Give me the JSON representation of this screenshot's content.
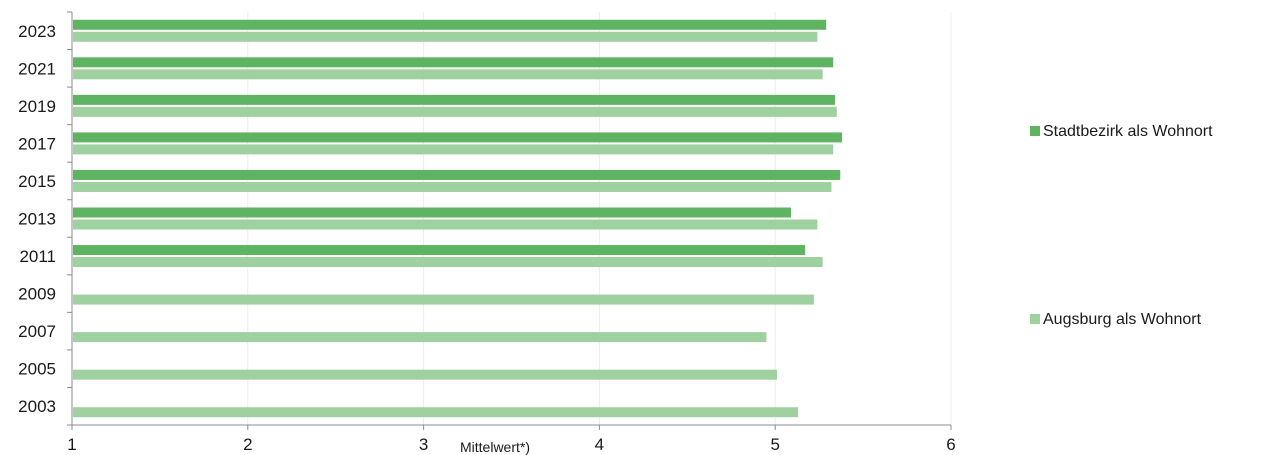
{
  "chart_data": {
    "type": "bar",
    "orientation": "horizontal",
    "xlabel": "Mittelwert*)",
    "ylabel": "",
    "xlim": [
      1,
      6
    ],
    "x_ticks": [
      "1",
      "2",
      "3",
      "4",
      "5",
      "6"
    ],
    "categories": [
      "2023",
      "2021",
      "2019",
      "2017",
      "2015",
      "2013",
      "2011",
      "2009",
      "2007",
      "2005",
      "2003"
    ],
    "series": [
      {
        "name": "Stadtbezirk als Wohnort",
        "color": "#5fb462",
        "values": [
          5.29,
          5.33,
          5.34,
          5.38,
          5.37,
          5.09,
          5.17,
          null,
          null,
          null,
          null
        ]
      },
      {
        "name": "Augsburg als Wohnort",
        "color": "#9ed0a0",
        "values": [
          5.24,
          5.27,
          5.35,
          5.33,
          5.32,
          5.24,
          5.27,
          5.22,
          4.95,
          5.01,
          5.13
        ]
      }
    ],
    "grid": "vertical",
    "legend_position": "right"
  }
}
